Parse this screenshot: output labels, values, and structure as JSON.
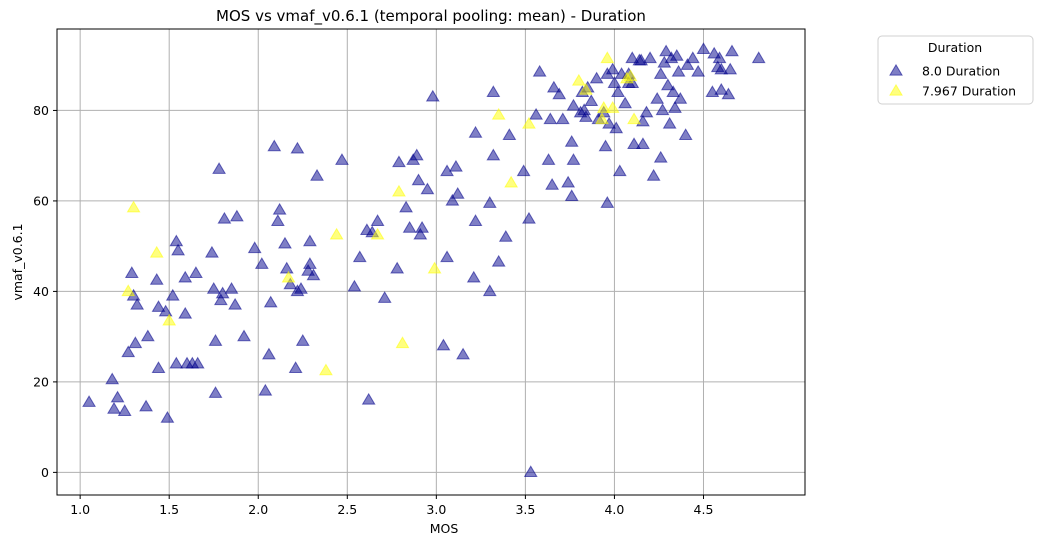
{
  "chart_data": {
    "type": "scatter",
    "title": "MOS vs vmaf_v0.6.1 (temporal pooling: mean) - Duration",
    "xlabel": "MOS",
    "ylabel": "vmaf_v0.6.1",
    "xlim": [
      0.87,
      5.07
    ],
    "ylim": [
      -5,
      98
    ],
    "x_ticks": [
      1.0,
      1.5,
      2.0,
      2.5,
      3.0,
      3.5,
      4.0,
      4.5
    ],
    "x_tick_labels": [
      "1.0",
      "1.5",
      "2.0",
      "2.5",
      "3.0",
      "3.5",
      "4.0",
      "4.5"
    ],
    "y_ticks": [
      0,
      20,
      40,
      60,
      80
    ],
    "y_tick_labels": [
      "0",
      "20",
      "40",
      "60",
      "80"
    ],
    "grid": true,
    "marker": "triangle",
    "legend": {
      "title": "Duration",
      "placement": "outside-right"
    },
    "series": [
      {
        "name": "8.0 Duration",
        "color": "#00008b",
        "points": [
          [
            1.05,
            15.5
          ],
          [
            1.18,
            20.5
          ],
          [
            1.19,
            14
          ],
          [
            1.21,
            16.5
          ],
          [
            1.25,
            13.5
          ],
          [
            1.27,
            26.5
          ],
          [
            1.29,
            44
          ],
          [
            1.3,
            39
          ],
          [
            1.32,
            37
          ],
          [
            1.31,
            28.5
          ],
          [
            1.37,
            14.5
          ],
          [
            1.38,
            30
          ],
          [
            1.43,
            42.5
          ],
          [
            1.44,
            36.5
          ],
          [
            1.44,
            23
          ],
          [
            1.48,
            35.5
          ],
          [
            1.49,
            12
          ],
          [
            1.52,
            39
          ],
          [
            1.54,
            24
          ],
          [
            1.54,
            51
          ],
          [
            1.55,
            49
          ],
          [
            1.59,
            43
          ],
          [
            1.59,
            35
          ],
          [
            1.6,
            24
          ],
          [
            1.63,
            24
          ],
          [
            1.65,
            44
          ],
          [
            1.66,
            24
          ],
          [
            1.74,
            48.5
          ],
          [
            1.75,
            40.5
          ],
          [
            1.76,
            17.5
          ],
          [
            1.76,
            29
          ],
          [
            1.78,
            67
          ],
          [
            1.79,
            38
          ],
          [
            1.8,
            39.5
          ],
          [
            1.81,
            56
          ],
          [
            1.85,
            40.5
          ],
          [
            1.87,
            37
          ],
          [
            1.88,
            56.5
          ],
          [
            1.92,
            30
          ],
          [
            1.98,
            49.5
          ],
          [
            2.02,
            46
          ],
          [
            2.04,
            18
          ],
          [
            2.06,
            26
          ],
          [
            2.07,
            37.5
          ],
          [
            2.09,
            72
          ],
          [
            2.11,
            55.5
          ],
          [
            2.12,
            58
          ],
          [
            2.15,
            50.5
          ],
          [
            2.16,
            45
          ],
          [
            2.18,
            41.5
          ],
          [
            2.21,
            23
          ],
          [
            2.22,
            40
          ],
          [
            2.22,
            71.5
          ],
          [
            2.24,
            40.5
          ],
          [
            2.25,
            29
          ],
          [
            2.28,
            44.5
          ],
          [
            2.29,
            46
          ],
          [
            2.29,
            51
          ],
          [
            2.31,
            43.5
          ],
          [
            2.33,
            65.5
          ],
          [
            2.47,
            69
          ],
          [
            2.54,
            41
          ],
          [
            2.57,
            47.5
          ],
          [
            2.61,
            53.5
          ],
          [
            2.62,
            16
          ],
          [
            2.64,
            53
          ],
          [
            2.67,
            55.5
          ],
          [
            2.71,
            38.5
          ],
          [
            2.78,
            45
          ],
          [
            2.79,
            68.5
          ],
          [
            2.83,
            58.5
          ],
          [
            2.85,
            54
          ],
          [
            2.87,
            69
          ],
          [
            2.89,
            70
          ],
          [
            2.9,
            64.5
          ],
          [
            2.91,
            52.5
          ],
          [
            2.92,
            54
          ],
          [
            2.95,
            62.5
          ],
          [
            2.98,
            83
          ],
          [
            3.04,
            28
          ],
          [
            3.06,
            66.5
          ],
          [
            3.06,
            47.5
          ],
          [
            3.09,
            60
          ],
          [
            3.11,
            67.5
          ],
          [
            3.12,
            61.5
          ],
          [
            3.15,
            26
          ],
          [
            3.21,
            43
          ],
          [
            3.22,
            55.5
          ],
          [
            3.22,
            75
          ],
          [
            3.3,
            40
          ],
          [
            3.3,
            59.5
          ],
          [
            3.32,
            70
          ],
          [
            3.32,
            84
          ],
          [
            3.35,
            46.5
          ],
          [
            3.39,
            52
          ],
          [
            3.41,
            74.5
          ],
          [
            3.49,
            66.5
          ],
          [
            3.52,
            56
          ],
          [
            3.53,
            0
          ],
          [
            3.56,
            79
          ],
          [
            3.58,
            88.5
          ],
          [
            3.63,
            69
          ],
          [
            3.64,
            78
          ],
          [
            3.65,
            63.5
          ],
          [
            3.66,
            85
          ],
          [
            3.69,
            83.5
          ],
          [
            3.71,
            78
          ],
          [
            3.74,
            64
          ],
          [
            3.76,
            61
          ],
          [
            3.76,
            73
          ],
          [
            3.77,
            69
          ],
          [
            3.77,
            81
          ],
          [
            3.81,
            79.5
          ],
          [
            3.82,
            84
          ],
          [
            3.83,
            80
          ],
          [
            3.84,
            78.5
          ],
          [
            3.85,
            85
          ],
          [
            3.87,
            82
          ],
          [
            3.9,
            87
          ],
          [
            3.91,
            78
          ],
          [
            3.94,
            79.5
          ],
          [
            3.95,
            72
          ],
          [
            3.96,
            88
          ],
          [
            3.96,
            59.5
          ],
          [
            3.97,
            77
          ],
          [
            3.99,
            89
          ],
          [
            4.0,
            86
          ],
          [
            4.01,
            76
          ],
          [
            4.03,
            66.5
          ],
          [
            4.02,
            84
          ],
          [
            4.04,
            88
          ],
          [
            4.06,
            81.5
          ],
          [
            4.08,
            86
          ],
          [
            4.08,
            88
          ],
          [
            4.1,
            86
          ],
          [
            4.1,
            91.5
          ],
          [
            4.11,
            72.5
          ],
          [
            4.14,
            91
          ],
          [
            4.15,
            91
          ],
          [
            4.16,
            72.5
          ],
          [
            4.16,
            77.5
          ],
          [
            4.18,
            79.5
          ],
          [
            4.2,
            91.5
          ],
          [
            4.22,
            65.5
          ],
          [
            4.24,
            82.5
          ],
          [
            4.26,
            69.5
          ],
          [
            4.26,
            88
          ],
          [
            4.27,
            80
          ],
          [
            4.28,
            90.5
          ],
          [
            4.29,
            93
          ],
          [
            4.3,
            85.5
          ],
          [
            4.31,
            77
          ],
          [
            4.32,
            91.5
          ],
          [
            4.33,
            84
          ],
          [
            4.34,
            80.5
          ],
          [
            4.35,
            92
          ],
          [
            4.36,
            88.5
          ],
          [
            4.37,
            82.5
          ],
          [
            4.4,
            74.5
          ],
          [
            4.41,
            90
          ],
          [
            4.44,
            91.5
          ],
          [
            4.47,
            88.5
          ],
          [
            4.5,
            93.5
          ],
          [
            4.55,
            84
          ],
          [
            4.56,
            92.5
          ],
          [
            4.58,
            89.5
          ],
          [
            4.59,
            91.5
          ],
          [
            4.6,
            89
          ],
          [
            4.6,
            84.5
          ],
          [
            4.64,
            83.5
          ],
          [
            4.65,
            89
          ],
          [
            4.66,
            93
          ],
          [
            4.81,
            91.5
          ]
        ]
      },
      {
        "name": "7.967 Duration",
        "color": "#ffff00",
        "points": [
          [
            1.27,
            40
          ],
          [
            1.3,
            58.5
          ],
          [
            1.43,
            48.5
          ],
          [
            1.5,
            33.5
          ],
          [
            2.17,
            43
          ],
          [
            2.38,
            22.5
          ],
          [
            2.44,
            52.5
          ],
          [
            2.67,
            52.5
          ],
          [
            2.79,
            62
          ],
          [
            2.81,
            28.5
          ],
          [
            2.99,
            45
          ],
          [
            3.35,
            79
          ],
          [
            3.42,
            64
          ],
          [
            3.52,
            77
          ],
          [
            3.8,
            86.5
          ],
          [
            3.84,
            84.5
          ],
          [
            3.93,
            78
          ],
          [
            3.94,
            80.5
          ],
          [
            3.96,
            91.5
          ],
          [
            3.99,
            80.5
          ],
          [
            4.07,
            87
          ],
          [
            4.09,
            87.5
          ],
          [
            4.11,
            78
          ]
        ]
      }
    ]
  }
}
